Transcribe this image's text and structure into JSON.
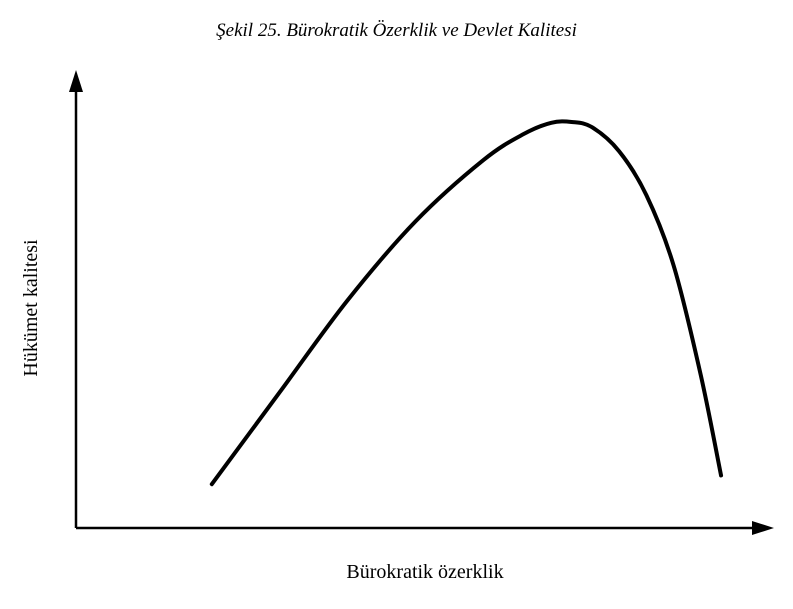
{
  "chart_data": {
    "type": "line",
    "title": "Şekil 25. Bürokratik Özerklik ve Devlet Kalitesi",
    "xlabel": "Bürokratik özerklik",
    "ylabel": "Hükümet kalitesi",
    "ticks": "none",
    "grid": false,
    "legend": "none",
    "xlim": [
      0,
      100
    ],
    "ylim": [
      0,
      100
    ],
    "series": [
      {
        "x": [
          20,
          30,
          40,
          50,
          60,
          66,
          70,
          73,
          76,
          80,
          84,
          88,
          92,
          95
        ],
        "y": [
          10,
          31,
          52,
          70,
          84,
          90,
          92.5,
          92.7,
          91.5,
          86,
          76,
          60,
          35,
          12
        ]
      }
    ],
    "line_color": "#000000"
  }
}
